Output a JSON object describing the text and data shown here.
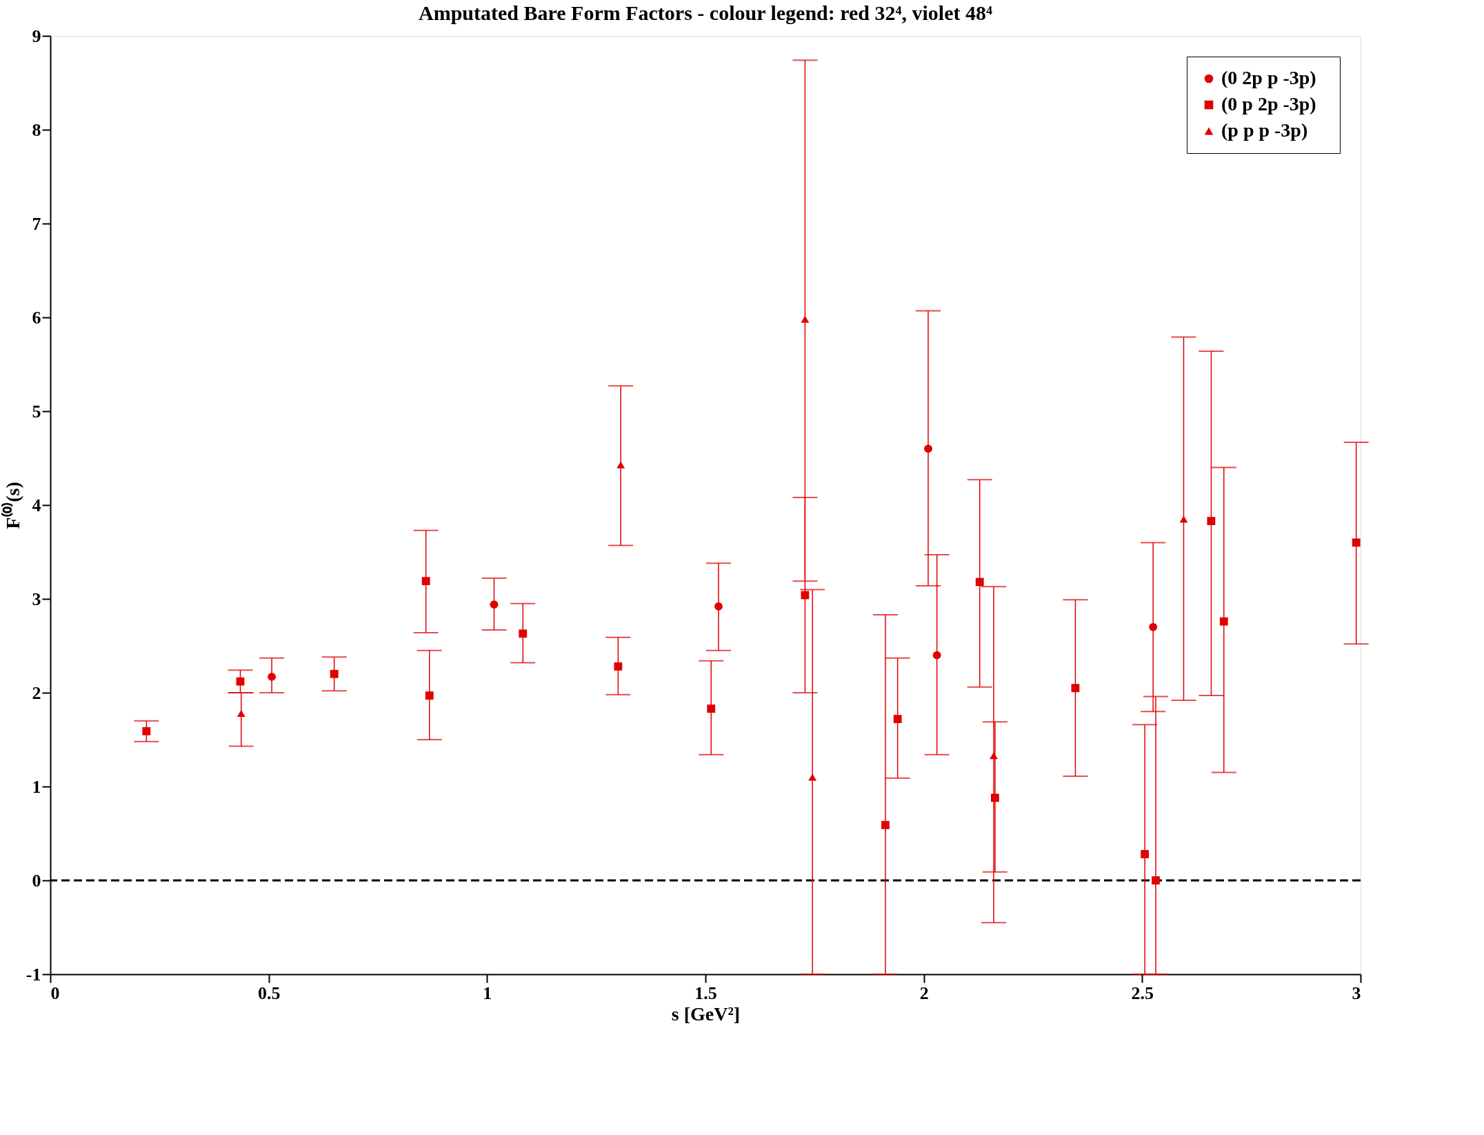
{
  "chart_data": {
    "type": "scatter",
    "title": "Amputated Bare Form Factors - colour legend: red 32⁴, violet 48⁴",
    "xlabel": "s  [GeV²]",
    "ylabel": "F⁽⁰⁾(s)",
    "xlim": [
      0,
      3
    ],
    "xticks": [
      0,
      0.5,
      1,
      1.5,
      2,
      2.5,
      3
    ],
    "ylim": [
      -1,
      9
    ],
    "yticks": [
      -1,
      0,
      1,
      2,
      3,
      4,
      5,
      6,
      7,
      8,
      9
    ],
    "grid": false,
    "legend": "top right",
    "ref_lines": [
      {
        "axis": "y",
        "value": 0,
        "color": "#000000",
        "line_style": "dashed"
      }
    ],
    "series": [
      {
        "name": "(0 2p   p -3p)",
        "color": "#e00000",
        "marker": "circle",
        "x": [
          0.507,
          1.016,
          1.53,
          2.01,
          2.03,
          2.525
        ],
        "values": [
          2.17,
          2.94,
          2.92,
          4.6,
          2.4,
          2.7
        ],
        "errors": [
          [
            2.0,
            2.37
          ],
          [
            2.67,
            3.22
          ],
          [
            2.45,
            3.38
          ],
          [
            3.14,
            6.07
          ],
          [
            1.34,
            3.47
          ],
          [
            1.8,
            3.6
          ]
        ]
      },
      {
        "name": "(0   p 2p -3p)",
        "color": "#e00000",
        "marker": "square",
        "x": [
          0.22,
          0.435,
          0.65,
          0.86,
          0.868,
          1.082,
          1.3,
          1.513,
          1.728,
          1.912,
          1.94,
          2.128,
          2.163,
          2.347,
          2.506,
          2.531,
          2.658,
          2.687,
          2.99
        ],
        "values": [
          1.59,
          2.12,
          2.2,
          3.19,
          1.97,
          2.63,
          2.28,
          1.83,
          3.04,
          0.59,
          1.72,
          3.18,
          0.88,
          2.05,
          0.28,
          0.0,
          3.83,
          2.76,
          3.6
        ],
        "errors": [
          [
            1.48,
            1.7
          ],
          [
            2.0,
            2.24
          ],
          [
            2.02,
            2.38
          ],
          [
            2.64,
            3.73
          ],
          [
            1.5,
            2.45
          ],
          [
            2.32,
            2.95
          ],
          [
            1.98,
            2.59
          ],
          [
            1.34,
            2.34
          ],
          [
            2.0,
            4.08
          ],
          [
            -1,
            2.83
          ],
          [
            1.09,
            2.37
          ],
          [
            2.06,
            4.27
          ],
          [
            0.09,
            1.69
          ],
          [
            1.11,
            2.99
          ],
          [
            -1,
            1.66
          ],
          [
            -1,
            1.96
          ],
          [
            1.97,
            5.64
          ],
          [
            1.15,
            4.4
          ],
          [
            2.52,
            4.67
          ]
        ]
      },
      {
        "name": "(p   p   p -3p)",
        "color": "#e00000",
        "marker": "triangle",
        "x": [
          0.437,
          1.306,
          1.728,
          1.745,
          2.16,
          2.595
        ],
        "values": [
          1.78,
          4.43,
          5.98,
          1.1,
          1.33,
          3.85
        ],
        "errors": [
          [
            1.43,
            2.0
          ],
          [
            3.57,
            5.27
          ],
          [
            3.19,
            8.74
          ],
          [
            -1,
            3.1
          ],
          [
            -0.45,
            3.13
          ],
          [
            1.92,
            5.79
          ]
        ]
      }
    ]
  }
}
